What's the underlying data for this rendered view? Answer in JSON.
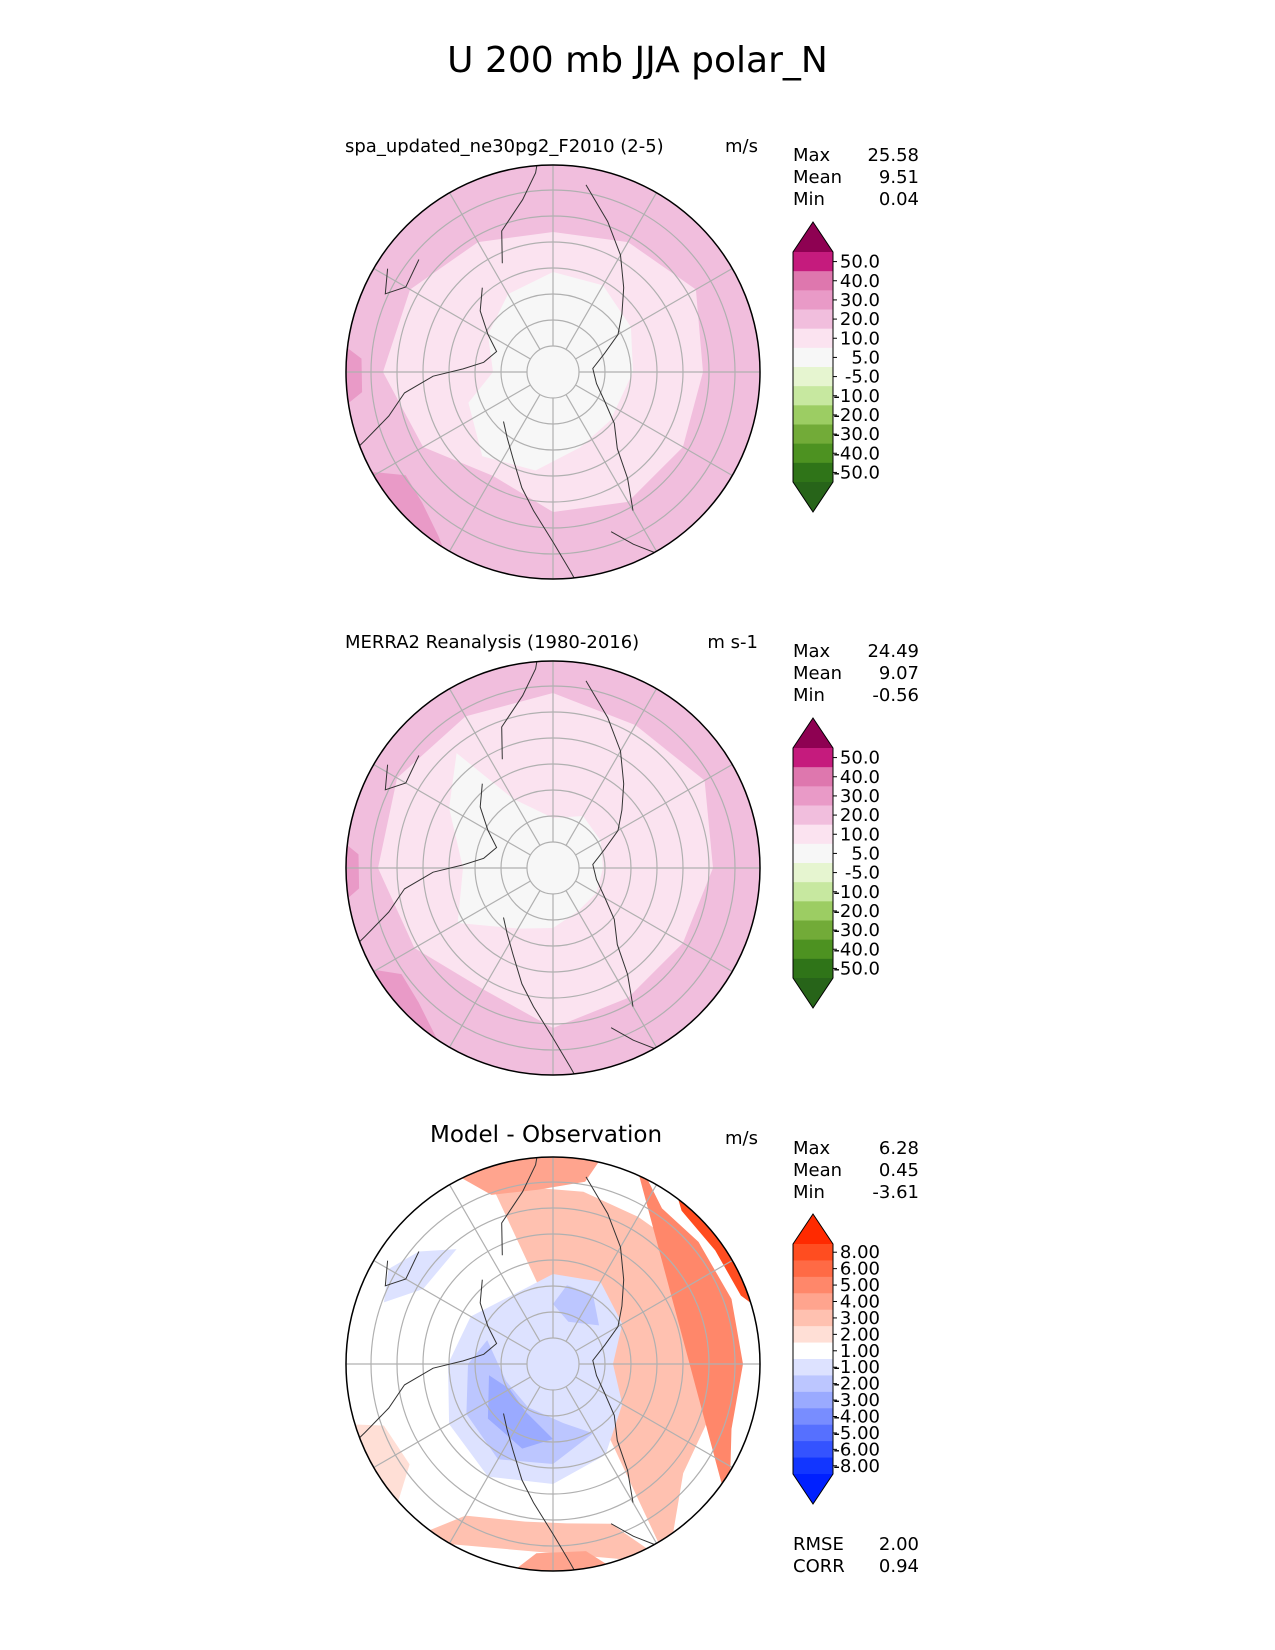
{
  "figure_title": "U 200 mb JJA polar_N",
  "panels": [
    {
      "title": "spa_updated_ne30pg2_F2010 (2-5)",
      "units": "m/s",
      "stats": [
        {
          "label": "Max",
          "value": "25.58"
        },
        {
          "label": "Mean",
          "value": "9.51"
        },
        {
          "label": "Min",
          "value": "0.04"
        }
      ]
    },
    {
      "title": "MERRA2 Reanalysis (1980-2016)",
      "units": "m s-1",
      "stats": [
        {
          "label": "Max",
          "value": "24.49"
        },
        {
          "label": "Mean",
          "value": "9.07"
        },
        {
          "label": "Min",
          "value": "-0.56"
        }
      ]
    },
    {
      "title": "Model - Observation",
      "units": "m/s",
      "stats": [
        {
          "label": "Max",
          "value": "6.28"
        },
        {
          "label": "Mean",
          "value": "0.45"
        },
        {
          "label": "Min",
          "value": "-3.61"
        }
      ],
      "extra_stats": [
        {
          "label": "RMSE",
          "value": "2.00"
        },
        {
          "label": "CORR",
          "value": "0.94"
        }
      ]
    }
  ],
  "colorbars": {
    "field": {
      "labels": [
        "50.0",
        "40.0",
        "30.0",
        "20.0",
        "10.0",
        "5.0",
        "-5.0",
        "-10.0",
        "-20.0",
        "-30.0",
        "-40.0",
        "-50.0"
      ],
      "colors": [
        "#8e0152",
        "#c51b7d",
        "#de77ae",
        "#e99ac7",
        "#f1bedd",
        "#fbe3f0",
        "#f7f7f7",
        "#e6f5d0",
        "#c7e8a0",
        "#9ccd63",
        "#72ab38",
        "#4d9221",
        "#2f7418",
        "#276419"
      ]
    },
    "diff": {
      "labels": [
        "8.00",
        "6.00",
        "5.00",
        "4.00",
        "3.00",
        "2.00",
        "1.00",
        "-1.00",
        "-2.00",
        "-3.00",
        "-4.00",
        "-5.00",
        "-6.00",
        "-8.00"
      ],
      "colors": [
        "#ff2a00",
        "#ff4d20",
        "#ff6a45",
        "#ff876a",
        "#ffa48e",
        "#ffc1b0",
        "#ffdfd6",
        "#ffffff",
        "#dde2ff",
        "#bcc6ff",
        "#9aaaff",
        "#788dff",
        "#5670ff",
        "#3453ff",
        "#1236ff",
        "#0020ff"
      ]
    }
  },
  "chart_data": [
    {
      "type": "heatmap",
      "projection": "north-polar-stereographic",
      "title": "spa_updated_ne30pg2_F2010 (2-5)",
      "variable": "U 200 mb JJA",
      "units": "m/s",
      "max": 25.58,
      "mean": 9.51,
      "min": 0.04,
      "contour_levels": [
        -50,
        -40,
        -30,
        -20,
        -10,
        -5,
        5,
        10,
        20,
        30,
        40,
        50
      ]
    },
    {
      "type": "heatmap",
      "projection": "north-polar-stereographic",
      "title": "MERRA2 Reanalysis (1980-2016)",
      "variable": "U 200 mb JJA",
      "units": "m s-1",
      "max": 24.49,
      "mean": 9.07,
      "min": -0.56,
      "contour_levels": [
        -50,
        -40,
        -30,
        -20,
        -10,
        -5,
        5,
        10,
        20,
        30,
        40,
        50
      ]
    },
    {
      "type": "heatmap",
      "projection": "north-polar-stereographic",
      "title": "Model - Observation",
      "units": "m/s",
      "max": 6.28,
      "mean": 0.45,
      "min": -3.61,
      "rmse": 2.0,
      "corr": 0.94,
      "contour_levels": [
        -8,
        -6,
        -5,
        -4,
        -3,
        -2,
        -1,
        1,
        2,
        3,
        4,
        5,
        6,
        8
      ]
    }
  ]
}
